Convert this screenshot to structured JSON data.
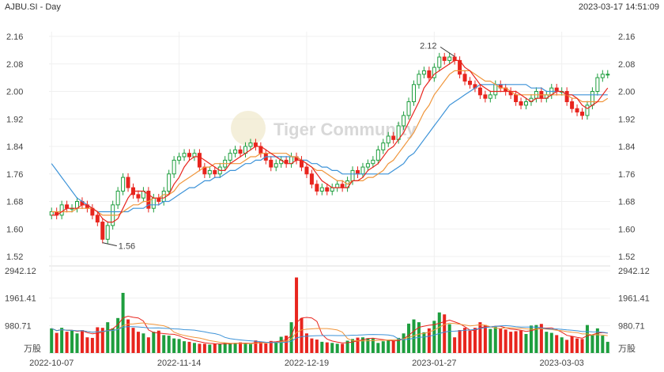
{
  "header": {
    "title": "AJBU.SI - Day",
    "timestamp": "2023-03-17 14:51:09"
  },
  "watermark": "Tiger Community",
  "chart_data": {
    "type": "candlestick",
    "price_axis": {
      "ticks": [
        "2.16",
        "2.08",
        "2.00",
        "1.92",
        "1.84",
        "1.76",
        "1.68",
        "1.60",
        "1.52"
      ],
      "range": [
        1.52,
        2.16
      ]
    },
    "volume_axis": {
      "ticks": [
        "2942.12",
        "1961.41",
        "980.71"
      ],
      "unit": "万股",
      "max": 2942.12
    },
    "x_ticks": [
      "2022-10-07",
      "2022-11-14",
      "2022-12-19",
      "2023-01-27",
      "2023-03-03"
    ],
    "x_tick_index": [
      0,
      25,
      50,
      75,
      100
    ],
    "annotations": [
      {
        "label": "1.56",
        "bar": 10,
        "price": 1.56
      },
      {
        "label": "2.12",
        "bar": 79,
        "price": 2.12
      }
    ],
    "colors": {
      "up": "#1e9e3e",
      "down": "#e8251e",
      "ma5": "#e8251e",
      "ma10": "#f0963c",
      "ma20": "#3d93d8"
    },
    "closes": [
      1.65,
      1.64,
      1.67,
      1.66,
      1.66,
      1.68,
      1.67,
      1.66,
      1.64,
      1.62,
      1.57,
      1.61,
      1.67,
      1.71,
      1.75,
      1.72,
      1.7,
      1.69,
      1.71,
      1.66,
      1.69,
      1.68,
      1.71,
      1.76,
      1.8,
      1.81,
      1.82,
      1.81,
      1.82,
      1.78,
      1.76,
      1.77,
      1.76,
      1.78,
      1.8,
      1.82,
      1.83,
      1.82,
      1.84,
      1.85,
      1.84,
      1.82,
      1.8,
      1.78,
      1.79,
      1.8,
      1.79,
      1.81,
      1.8,
      1.78,
      1.76,
      1.73,
      1.71,
      1.72,
      1.71,
      1.72,
      1.73,
      1.72,
      1.74,
      1.77,
      1.76,
      1.78,
      1.79,
      1.8,
      1.83,
      1.85,
      1.87,
      1.86,
      1.9,
      1.93,
      1.97,
      2.02,
      2.05,
      2.06,
      2.04,
      2.07,
      2.1,
      2.09,
      2.1,
      2.09,
      2.05,
      2.03,
      2.02,
      2.01,
      1.99,
      1.98,
      1.99,
      2.02,
      2.01,
      2.0,
      1.99,
      1.97,
      1.96,
      1.97,
      1.98,
      2.0,
      1.98,
      1.99,
      2.01,
      2.0,
      2.0,
      1.97,
      1.95,
      1.94,
      1.93,
      1.96,
      2.0,
      2.04,
      2.05,
      2.05
    ],
    "volumes": [
      880,
      720,
      900,
      760,
      800,
      700,
      820,
      560,
      540,
      920,
      900,
      1100,
      880,
      1250,
      2150,
      1200,
      900,
      760,
      700,
      560,
      760,
      800,
      640,
      620,
      520,
      500,
      420,
      400,
      360,
      330,
      330,
      300,
      340,
      320,
      360,
      340,
      360,
      380,
      330,
      320,
      450,
      400,
      340,
      430,
      400,
      580,
      620,
      1100,
      2700,
      1250,
      700,
      520,
      480,
      400,
      380,
      360,
      330,
      330,
      440,
      500,
      550,
      560,
      530,
      520,
      360,
      420,
      450,
      430,
      540,
      700,
      1050,
      1200,
      1100,
      740,
      880,
      1150,
      1450,
      1380,
      1030,
      560,
      820,
      900,
      800,
      900,
      1100,
      1000,
      860,
      930,
      880,
      840,
      760,
      780,
      800,
      680,
      980,
      1000,
      1040,
      760,
      720,
      640,
      560,
      470,
      600,
      520,
      500,
      1000,
      650,
      880,
      620,
      400
    ],
    "ma5": [
      1.64,
      1.64,
      1.65,
      1.66,
      1.66,
      1.66,
      1.67,
      1.67,
      1.66,
      1.65,
      1.63,
      1.62,
      1.62,
      1.63,
      1.66,
      1.69,
      1.71,
      1.71,
      1.71,
      1.7,
      1.69,
      1.69,
      1.69,
      1.7,
      1.73,
      1.75,
      1.78,
      1.8,
      1.81,
      1.81,
      1.8,
      1.79,
      1.78,
      1.77,
      1.77,
      1.79,
      1.8,
      1.81,
      1.82,
      1.83,
      1.84,
      1.84,
      1.83,
      1.82,
      1.81,
      1.8,
      1.79,
      1.79,
      1.8,
      1.8,
      1.79,
      1.78,
      1.76,
      1.74,
      1.73,
      1.72,
      1.72,
      1.72,
      1.72,
      1.74,
      1.74,
      1.75,
      1.77,
      1.78,
      1.79,
      1.81,
      1.83,
      1.84,
      1.86,
      1.88,
      1.91,
      1.94,
      1.97,
      2.01,
      2.03,
      2.05,
      2.06,
      2.07,
      2.08,
      2.09,
      2.09,
      2.07,
      2.06,
      2.04,
      2.02,
      2.01,
      2.0,
      2.0,
      2.0,
      2.0,
      2.0,
      2.0,
      1.99,
      1.98,
      1.97,
      1.98,
      1.98,
      1.98,
      1.99,
      2.0,
      2.0,
      1.99,
      1.99,
      1.98,
      1.96,
      1.95,
      1.96,
      1.97,
      1.99,
      2.01
    ],
    "ma10": [
      1.65,
      1.65,
      1.65,
      1.65,
      1.65,
      1.66,
      1.66,
      1.66,
      1.66,
      1.65,
      1.64,
      1.64,
      1.64,
      1.64,
      1.65,
      1.66,
      1.67,
      1.67,
      1.68,
      1.68,
      1.69,
      1.69,
      1.7,
      1.7,
      1.71,
      1.73,
      1.74,
      1.75,
      1.76,
      1.77,
      1.78,
      1.78,
      1.79,
      1.79,
      1.79,
      1.79,
      1.79,
      1.79,
      1.8,
      1.81,
      1.81,
      1.82,
      1.82,
      1.82,
      1.82,
      1.82,
      1.82,
      1.81,
      1.81,
      1.8,
      1.79,
      1.78,
      1.77,
      1.77,
      1.76,
      1.75,
      1.74,
      1.74,
      1.73,
      1.74,
      1.74,
      1.74,
      1.75,
      1.75,
      1.76,
      1.77,
      1.79,
      1.8,
      1.82,
      1.84,
      1.86,
      1.88,
      1.91,
      1.94,
      1.96,
      1.99,
      2.01,
      2.03,
      2.05,
      2.06,
      2.06,
      2.06,
      2.06,
      2.05,
      2.04,
      2.03,
      2.03,
      2.02,
      2.01,
      2.01,
      2.0,
      1.99,
      1.99,
      1.99,
      1.99,
      1.99,
      1.99,
      1.99,
      1.99,
      1.99,
      1.99,
      1.99,
      1.98,
      1.98,
      1.97,
      1.97,
      1.97,
      1.97,
      1.97,
      1.98
    ],
    "ma20": [
      1.79,
      1.77,
      1.75,
      1.73,
      1.71,
      1.69,
      1.68,
      1.67,
      1.66,
      1.65,
      1.65,
      1.65,
      1.65,
      1.65,
      1.65,
      1.65,
      1.66,
      1.66,
      1.66,
      1.67,
      1.67,
      1.67,
      1.68,
      1.68,
      1.69,
      1.7,
      1.71,
      1.72,
      1.72,
      1.73,
      1.74,
      1.74,
      1.75,
      1.75,
      1.76,
      1.77,
      1.77,
      1.78,
      1.79,
      1.79,
      1.8,
      1.8,
      1.81,
      1.81,
      1.81,
      1.81,
      1.81,
      1.81,
      1.81,
      1.8,
      1.8,
      1.79,
      1.79,
      1.78,
      1.78,
      1.77,
      1.77,
      1.76,
      1.76,
      1.76,
      1.76,
      1.76,
      1.76,
      1.76,
      1.76,
      1.76,
      1.76,
      1.77,
      1.78,
      1.79,
      1.81,
      1.82,
      1.84,
      1.86,
      1.88,
      1.9,
      1.92,
      1.94,
      1.96,
      1.97,
      1.98,
      1.99,
      2.0,
      2.01,
      2.02,
      2.02,
      2.02,
      2.02,
      2.02,
      2.02,
      2.02,
      2.02,
      2.02,
      2.02,
      2.01,
      2.01,
      2.01,
      2.0,
      2.0,
      2.0,
      2.0,
      1.99,
      1.99,
      1.99,
      1.99,
      1.99,
      1.99,
      1.99,
      1.99,
      1.99
    ]
  }
}
